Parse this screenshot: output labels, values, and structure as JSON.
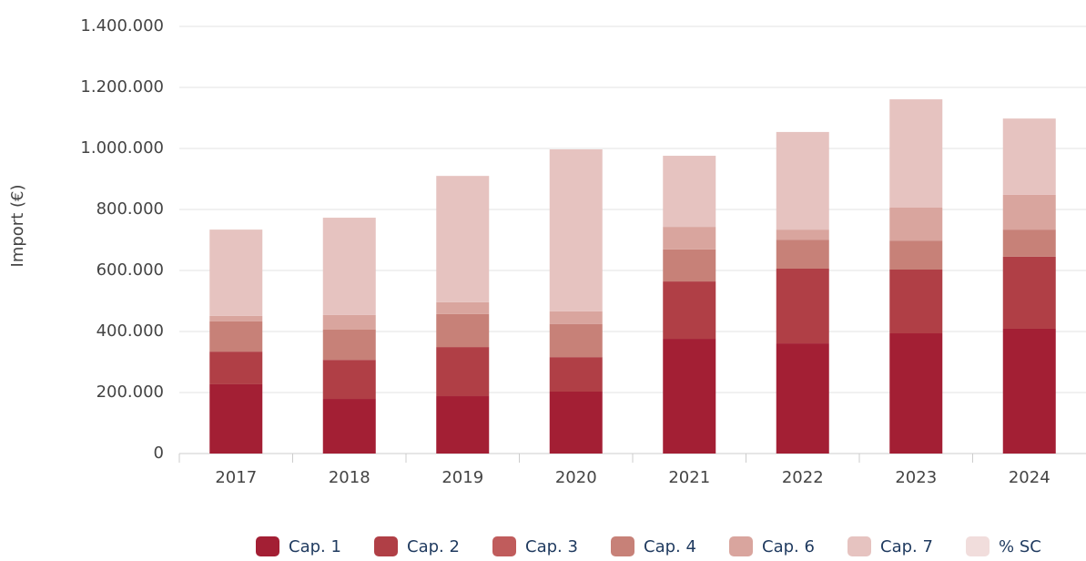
{
  "chart_data": {
    "type": "stacked_bar",
    "y_label": "Import (€)",
    "categories": [
      "2017",
      "2018",
      "2019",
      "2020",
      "2021",
      "2022",
      "2023",
      "2024"
    ],
    "series": [
      {
        "name": "Cap. 1",
        "color": "#a31f34",
        "values": [
          227000,
          179000,
          188000,
          203000,
          376000,
          361000,
          394000,
          409000
        ]
      },
      {
        "name": "Cap. 2",
        "color": "#b03f46",
        "values": [
          107000,
          128000,
          161000,
          113000,
          188000,
          245000,
          209000,
          236000
        ]
      },
      {
        "name": "Cap. 3",
        "color": "#c05c5c",
        "values": [
          0,
          0,
          0,
          0,
          0,
          0,
          0,
          0
        ]
      },
      {
        "name": "Cap. 4",
        "color": "#c78178",
        "values": [
          99000,
          99000,
          108000,
          108000,
          105000,
          95000,
          95000,
          89000
        ]
      },
      {
        "name": "Cap. 6",
        "color": "#d9a59e",
        "values": [
          18000,
          48000,
          39000,
          42000,
          74000,
          33000,
          108000,
          114000
        ]
      },
      {
        "name": "Cap. 7",
        "color": "#e6c3c0",
        "values": [
          283000,
          319000,
          414000,
          531000,
          233000,
          320000,
          355000,
          250000
        ]
      },
      {
        "name": "% SC",
        "color": "#f1dddc",
        "values": [
          0,
          0,
          0,
          0,
          0,
          0,
          0,
          0
        ]
      }
    ],
    "ylim": [
      0,
      1400000
    ],
    "yticks": [
      0,
      {
        "value": 200000,
        "label": "200.000"
      },
      {
        "value": 400000,
        "label": "400.000"
      },
      {
        "value": 600000,
        "label": "600.000"
      },
      {
        "value": 800000,
        "label": "800.000"
      },
      {
        "value": 1000000,
        "label": "1.000.000"
      },
      {
        "value": 1200000,
        "label": "1.200.000"
      },
      {
        "value": 1400000,
        "label": "1.400.000"
      }
    ],
    "grid": true
  }
}
